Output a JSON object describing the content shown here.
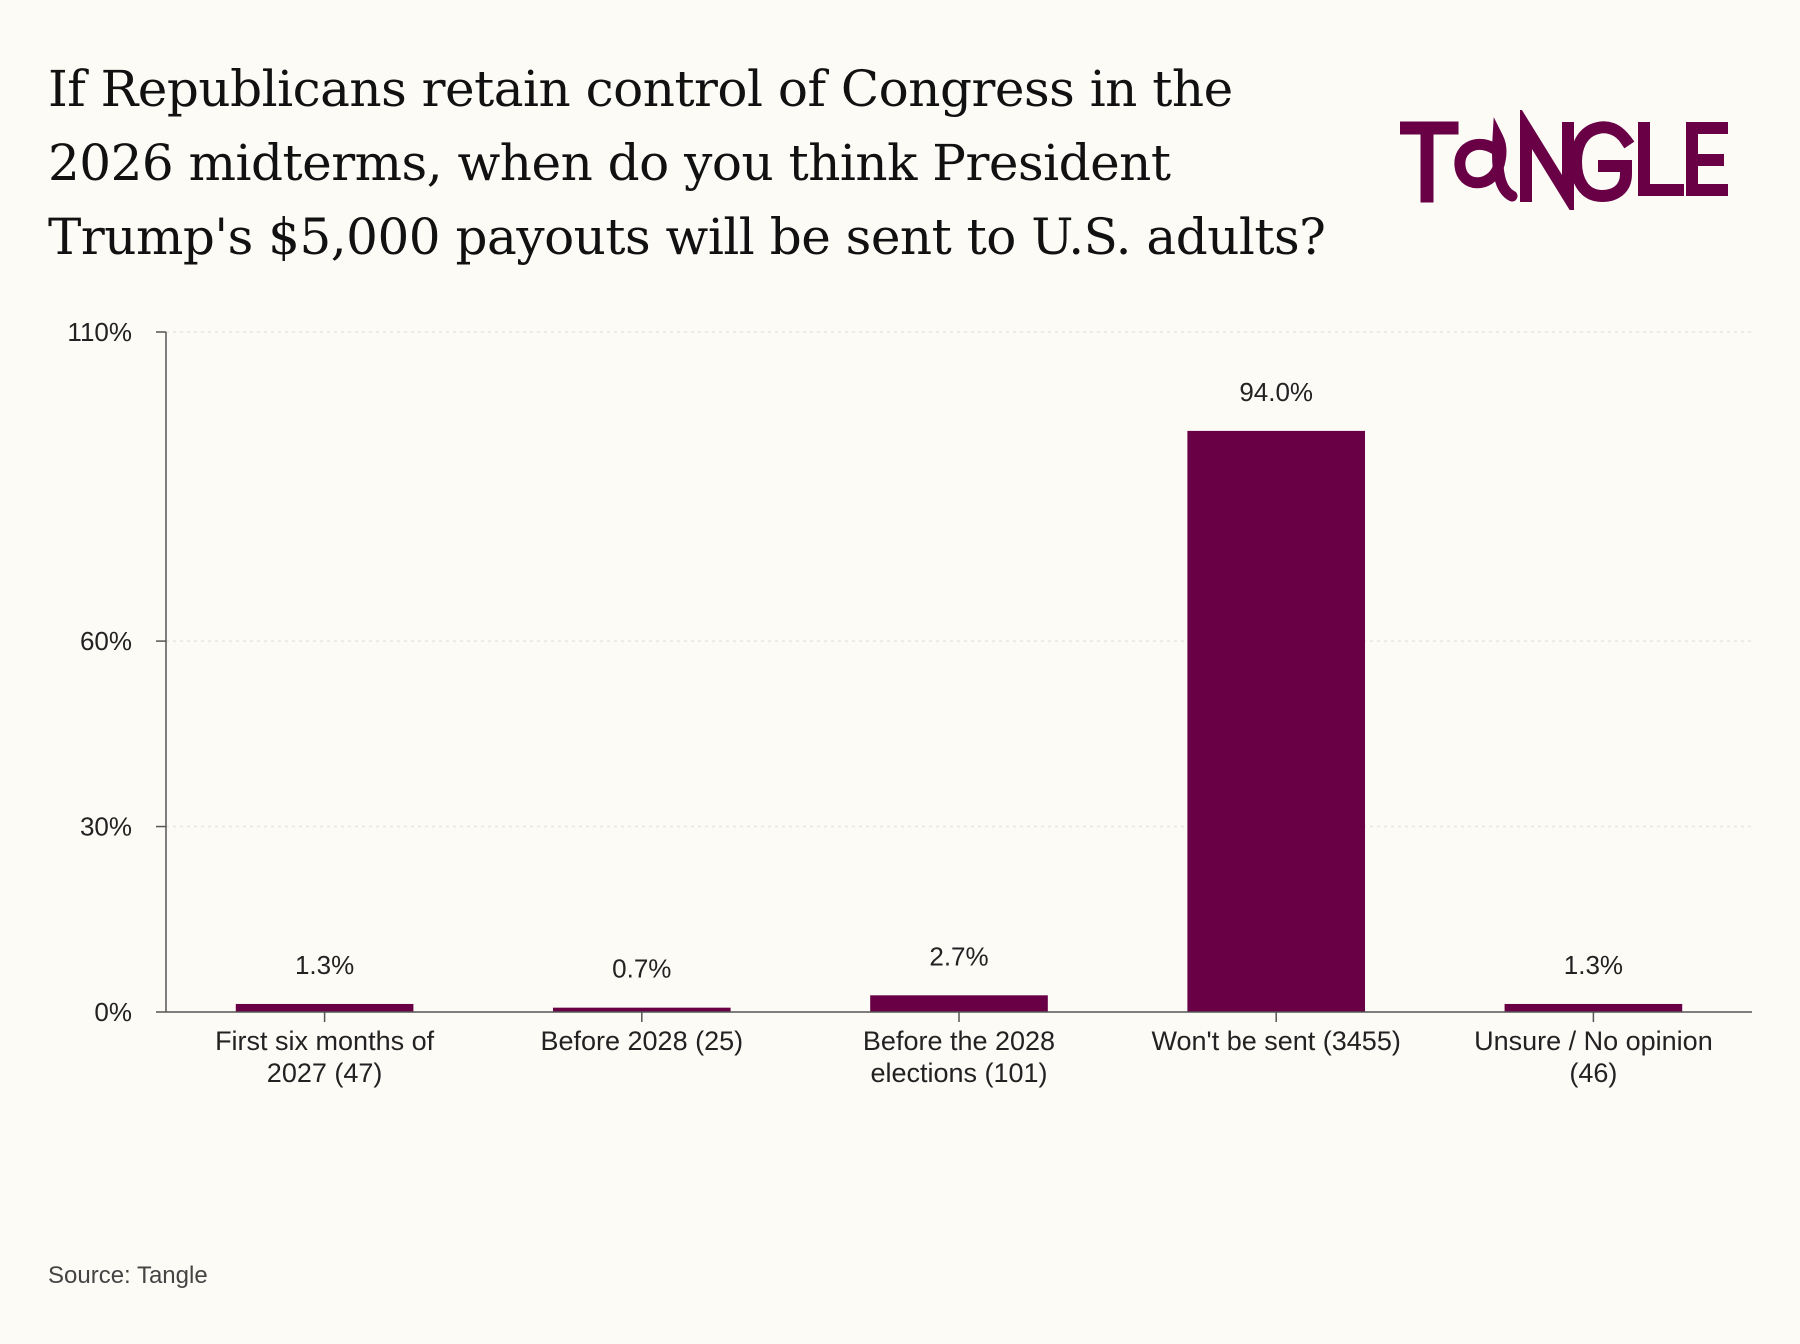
{
  "title": "If Republicans retain control of Congress in the 2026 midterms, when do you think President Trump's $5,000 payouts will be sent to U.S. adults?",
  "logo": {
    "text": "TANGLE",
    "color": "#690046"
  },
  "source": "Source: Tangle",
  "colors": {
    "bar": "#690046",
    "axis": "#555555",
    "grid": "#e8e6df",
    "background": "#fcfbf6"
  },
  "chart_data": {
    "type": "bar",
    "title": "If Republicans retain control of Congress in the 2026 midterms, when do you think President Trump's $5,000 payouts will be sent to U.S. adults?",
    "categories": [
      [
        "First six months of",
        "2027 (47)"
      ],
      [
        "Before 2028 (25)"
      ],
      [
        "Before the 2028",
        "elections (101)"
      ],
      [
        "Won't be sent (3455)"
      ],
      [
        "Unsure / No opinion",
        "(46)"
      ]
    ],
    "values": [
      1.3,
      0.7,
      2.7,
      94.0,
      1.3
    ],
    "value_labels": [
      "1.3%",
      "0.7%",
      "2.7%",
      "94.0%",
      "1.3%"
    ],
    "yticks": [
      0,
      30,
      60,
      110
    ],
    "ytick_labels": [
      "0%",
      "30%",
      "60%",
      "110%"
    ],
    "ylim": [
      0,
      110
    ],
    "xlabel": "",
    "ylabel": "",
    "grid": true,
    "legend": "none"
  }
}
